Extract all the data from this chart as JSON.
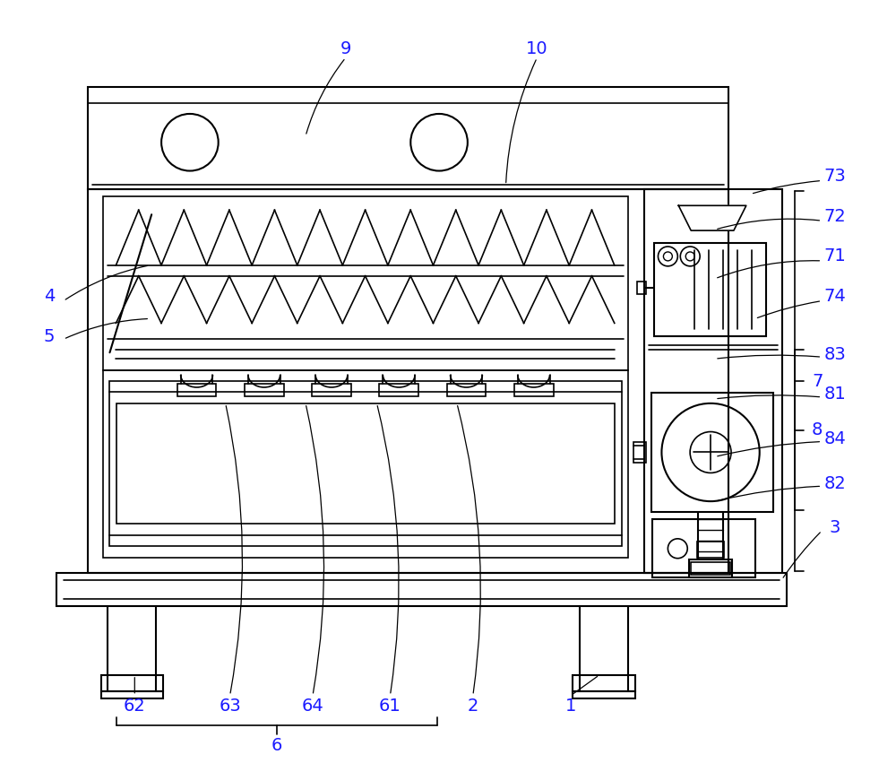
{
  "bg_color": "#ffffff",
  "line_color": "#000000",
  "label_color": "#1a1aff",
  "line_width": 1.5,
  "fig_width": 10.0,
  "fig_height": 8.51
}
